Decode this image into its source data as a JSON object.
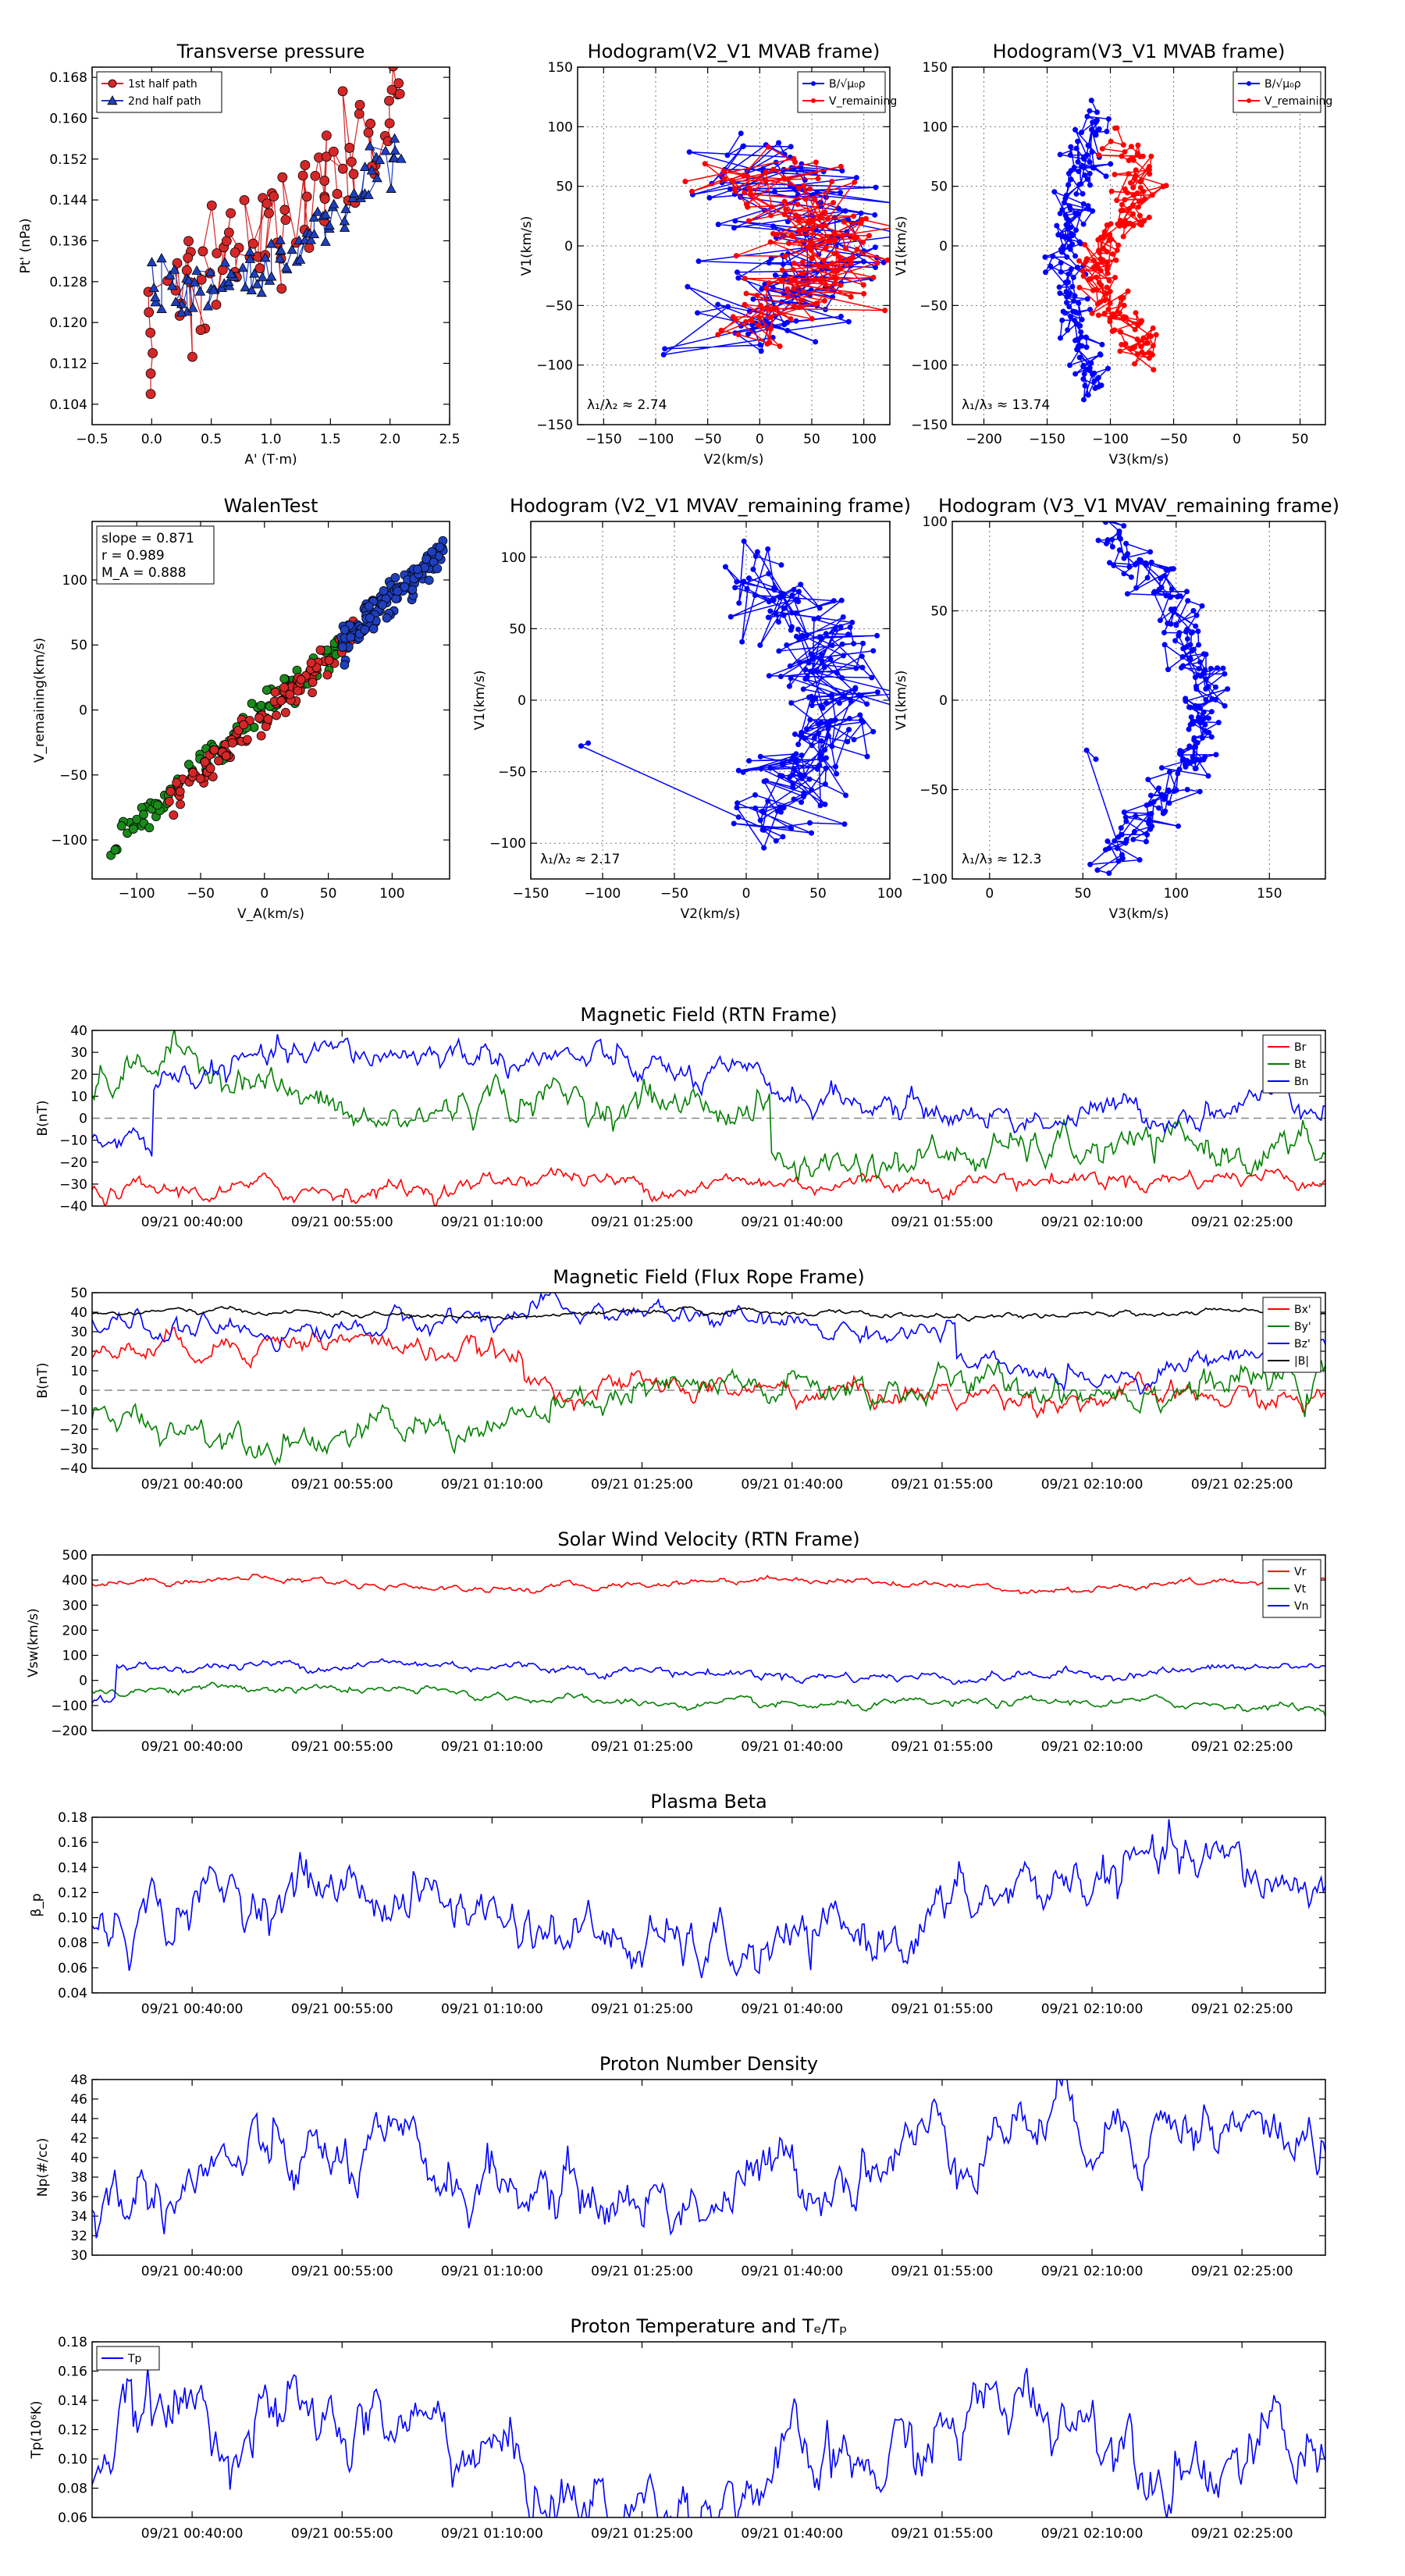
{
  "colors": {
    "red": "#ff0000",
    "green": "#008000",
    "blue": "#0000ff",
    "black": "#000000",
    "marker_red": "#d62728",
    "marker_blue": "#1f3fbf",
    "marker_green": "#1a8a1a",
    "axis": "#000000",
    "grid": "#777777"
  },
  "time_ticks": [
    "09/21 00:40:00",
    "09/21 00:55:00",
    "09/21 01:10:00",
    "09/21 01:25:00",
    "09/21 01:40:00",
    "09/21 01:55:00",
    "09/21 02:10:00",
    "09/21 02:25:00"
  ],
  "chart_data": [
    {
      "id": "tp",
      "type": "scatter",
      "title": "Transverse pressure",
      "xlabel": "A' (T·m)",
      "ylabel": "Pt' (nPa)",
      "xlim": [
        -0.5,
        2.5
      ],
      "ylim": [
        0.1,
        0.17
      ],
      "xticks": [
        -0.5,
        0.0,
        0.5,
        1.0,
        1.5,
        2.0,
        2.5
      ],
      "xtick_labels": [
        "−0.5",
        "0.0",
        "0.5",
        "1.0",
        "1.5",
        "2.0",
        "2.5"
      ],
      "yticks": [
        0.104,
        0.112,
        0.12,
        0.128,
        0.136,
        0.144,
        0.152,
        0.16,
        0.168
      ],
      "ytick_labels": [
        "0.104",
        "0.112",
        "0.120",
        "0.128",
        "0.136",
        "0.144",
        "0.152",
        "0.160",
        "0.168"
      ],
      "legend": [
        "1st half path",
        "2nd half path"
      ],
      "legend_loc": "upper-left"
    },
    {
      "id": "h21",
      "type": "scatter",
      "title": "Hodogram(V2_V1 MVAB frame)",
      "xlabel": "V2(km/s)",
      "ylabel": "V1(km/s)",
      "xlim": [
        -175,
        125
      ],
      "ylim": [
        -150,
        150
      ],
      "xticks": [
        -150,
        -100,
        -50,
        0,
        50,
        100
      ],
      "xtick_labels": [
        "−150",
        "−100",
        "−50",
        "0",
        "50",
        "100"
      ],
      "yticks": [
        -150,
        -100,
        -50,
        0,
        50,
        100,
        150
      ],
      "ytick_labels": [
        "−150",
        "−100",
        "−50",
        "0",
        "50",
        "100",
        "150"
      ],
      "legend": [
        "B/√μ₀ρ",
        "V_remaining"
      ],
      "legend_loc": "upper-right",
      "annotation": "λ₁/λ₂ ≈ 2.74"
    },
    {
      "id": "h31",
      "type": "scatter",
      "title": "Hodogram(V3_V1 MVAB frame)",
      "xlabel": "V3(km/s)",
      "ylabel": "V1(km/s)",
      "xlim": [
        -225,
        70
      ],
      "ylim": [
        -150,
        150
      ],
      "xticks": [
        -200,
        -150,
        -100,
        -50,
        0,
        50
      ],
      "xtick_labels": [
        "−200",
        "−150",
        "−100",
        "−50",
        "0",
        "50"
      ],
      "yticks": [
        -150,
        -100,
        -50,
        0,
        50,
        100,
        150
      ],
      "ytick_labels": [
        "−150",
        "−100",
        "−50",
        "0",
        "50",
        "100",
        "150"
      ],
      "legend": [
        "B/√μ₀ρ",
        "V_remaining"
      ],
      "legend_loc": "upper-right",
      "annotation": "λ₁/λ₃ ≈ 13.74"
    },
    {
      "id": "walen",
      "type": "scatter",
      "title": "WalenTest",
      "xlabel": "V_A(km/s)",
      "ylabel": "V_remaining(km/s)",
      "xlim": [
        -135,
        145
      ],
      "ylim": [
        -130,
        145
      ],
      "xticks": [
        -100,
        -50,
        0,
        50,
        100
      ],
      "xtick_labels": [
        "−100",
        "−50",
        "0",
        "50",
        "100"
      ],
      "yticks": [
        -100,
        -50,
        0,
        50,
        100
      ],
      "ytick_labels": [
        "−100",
        "−50",
        "0",
        "50",
        "100"
      ],
      "text_box": [
        "slope = 0.871",
        "r = 0.989",
        "M_A = 0.888"
      ],
      "slope": 0.871
    },
    {
      "id": "h21r",
      "type": "scatter",
      "title": "Hodogram (V2_V1 MVAV_remaining frame)",
      "xlabel": "V2(km/s)",
      "ylabel": "V1(km/s)",
      "xlim": [
        -150,
        100
      ],
      "ylim": [
        -125,
        125
      ],
      "xticks": [
        -150,
        -100,
        -50,
        0,
        50,
        100
      ],
      "xtick_labels": [
        "−150",
        "−100",
        "−50",
        "0",
        "50",
        "100"
      ],
      "yticks": [
        -100,
        -50,
        0,
        50,
        100
      ],
      "ytick_labels": [
        "−100",
        "−50",
        "0",
        "50",
        "100"
      ],
      "annotation": "λ₁/λ₂ ≈ 2.17"
    },
    {
      "id": "h31r",
      "type": "scatter",
      "title": "Hodogram (V3_V1 MVAV_remaining frame)",
      "xlabel": "V3(km/s)",
      "ylabel": "V1(km/s)",
      "xlim": [
        -20,
        180
      ],
      "ylim": [
        -100,
        100
      ],
      "xticks": [
        0,
        50,
        100,
        150
      ],
      "xtick_labels": [
        "0",
        "50",
        "100",
        "150"
      ],
      "yticks": [
        -100,
        -50,
        0,
        50,
        100
      ],
      "ytick_labels": [
        "−100",
        "−50",
        "0",
        "50",
        "100"
      ],
      "annotation": "λ₁/λ₃ ≈ 12.3"
    },
    {
      "id": "mag_rtn",
      "type": "line",
      "title": "Magnetic Field (RTN Frame)",
      "ylabel": "B(nT)",
      "ylim": [
        -40,
        40
      ],
      "yticks": [
        -40,
        -30,
        -20,
        -10,
        0,
        10,
        20,
        30,
        40
      ],
      "ytick_labels": [
        "−40",
        "−30",
        "−20",
        "−10",
        "0",
        "10",
        "20",
        "30",
        "40"
      ],
      "legend": [
        "Br",
        "Bt",
        "Bn"
      ],
      "legend_loc": "upper-right",
      "series": [
        {
          "name": "Br",
          "approx_mean": -30
        },
        {
          "name": "Bt",
          "approx_mean": 5
        },
        {
          "name": "Bn",
          "approx_mean": 20
        }
      ]
    },
    {
      "id": "mag_fr",
      "type": "line",
      "title": "Magnetic Field (Flux Rope Frame)",
      "ylabel": "B(nT)",
      "ylim": [
        -40,
        50
      ],
      "yticks": [
        -40,
        -30,
        -20,
        -10,
        0,
        10,
        20,
        30,
        40,
        50
      ],
      "ytick_labels": [
        "−40",
        "−30",
        "−20",
        "−10",
        "0",
        "10",
        "20",
        "30",
        "40",
        "50"
      ],
      "legend": [
        "Bx'",
        "By'",
        "Bz'",
        "|B|"
      ],
      "legend_loc": "upper-right",
      "series": [
        {
          "name": "Bx'",
          "approx_mean": 5
        },
        {
          "name": "By'",
          "approx_mean": 0
        },
        {
          "name": "Bz'",
          "approx_mean": 30
        },
        {
          "name": "|B|",
          "approx_mean": 39
        }
      ]
    },
    {
      "id": "vsw",
      "type": "line",
      "title": "Solar Wind Velocity (RTN Frame)",
      "ylabel": "Vsw(km/s)",
      "ylim": [
        -200,
        500
      ],
      "yticks": [
        -200,
        -100,
        0,
        100,
        200,
        300,
        400,
        500
      ],
      "ytick_labels": [
        "−200",
        "−100",
        "0",
        "100",
        "200",
        "300",
        "400",
        "500"
      ],
      "legend": [
        "Vr",
        "Vt",
        "Vn"
      ],
      "legend_loc": "upper-right",
      "series": [
        {
          "name": "Vr",
          "approx_mean": 390
        },
        {
          "name": "Vt",
          "approx_mean": -80
        },
        {
          "name": "Vn",
          "approx_mean": 55
        }
      ]
    },
    {
      "id": "beta",
      "type": "line",
      "title": "Plasma Beta",
      "ylabel": "β_p",
      "ylim": [
        0.04,
        0.18
      ],
      "yticks": [
        0.04,
        0.06,
        0.08,
        0.1,
        0.12,
        0.14,
        0.16,
        0.18
      ],
      "ytick_labels": [
        "0.04",
        "0.06",
        "0.08",
        "0.10",
        "0.12",
        "0.14",
        "0.16",
        "0.18"
      ],
      "series": [
        {
          "name": "beta",
          "approx_mean": 0.1
        }
      ]
    },
    {
      "id": "np",
      "type": "line",
      "title": "Proton Number Density",
      "ylabel": "Np(#/cc)",
      "ylim": [
        30,
        48
      ],
      "yticks": [
        30,
        32,
        34,
        36,
        38,
        40,
        42,
        44,
        46,
        48
      ],
      "ytick_labels": [
        "30",
        "32",
        "34",
        "36",
        "38",
        "40",
        "42",
        "44",
        "46",
        "48"
      ],
      "series": [
        {
          "name": "Np",
          "approx_mean": 40
        }
      ]
    },
    {
      "id": "tpp",
      "type": "line",
      "title": "Proton Temperature and Tₑ/Tₚ",
      "ylabel": "Tp(10⁶K)",
      "ylim": [
        0.06,
        0.18
      ],
      "yticks": [
        0.06,
        0.08,
        0.1,
        0.12,
        0.14,
        0.16,
        0.18
      ],
      "ytick_labels": [
        "0.06",
        "0.08",
        "0.10",
        "0.12",
        "0.14",
        "0.16",
        "0.18"
      ],
      "legend": [
        "Tp"
      ],
      "legend_loc": "upper-left",
      "series": [
        {
          "name": "Tp",
          "approx_mean": 0.11
        }
      ]
    }
  ]
}
